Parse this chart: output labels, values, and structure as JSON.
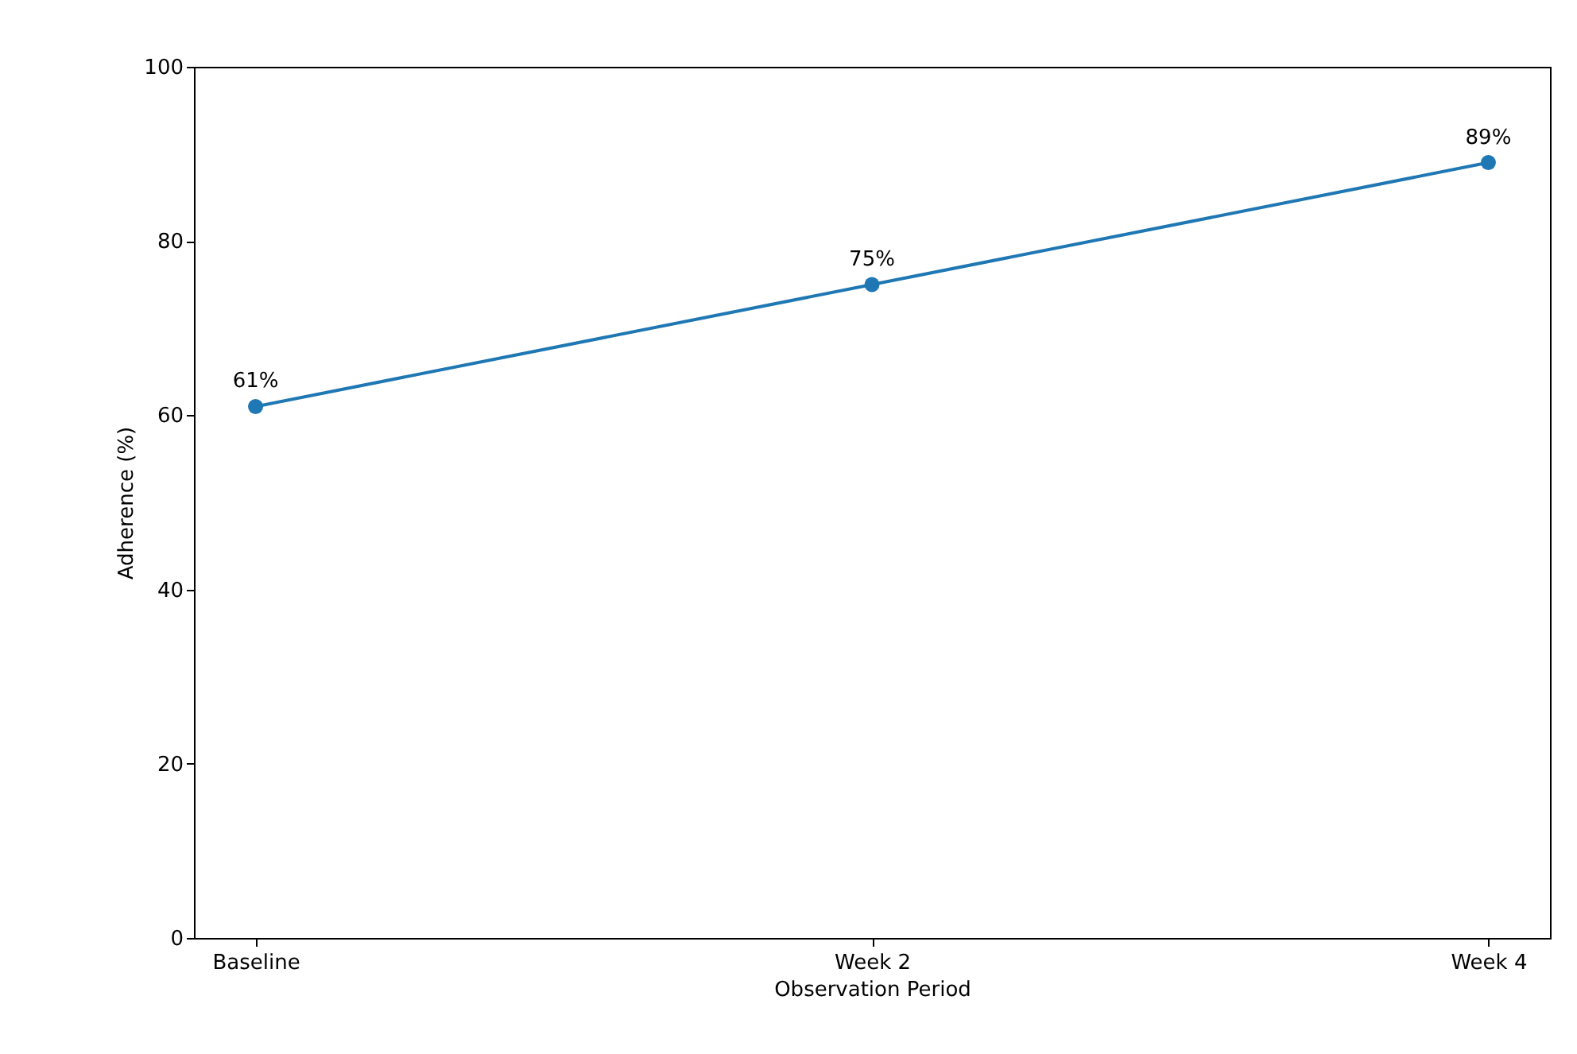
{
  "chart_data": {
    "type": "line",
    "categories": [
      "Baseline",
      "Week 2",
      "Week 4"
    ],
    "series": [
      {
        "color": "#1f77b4",
        "values": [
          61,
          75,
          89
        ],
        "value_labels": [
          "61%",
          "75%",
          "89%"
        ]
      }
    ],
    "xlabel": "Observation Period",
    "ylabel": "Adherence (%)",
    "ylim": [
      0,
      100
    ],
    "yticks": [
      0,
      20,
      40,
      60,
      80,
      100
    ],
    "marker": "circle",
    "line_style": "solid",
    "grid": false,
    "legend": false
  }
}
